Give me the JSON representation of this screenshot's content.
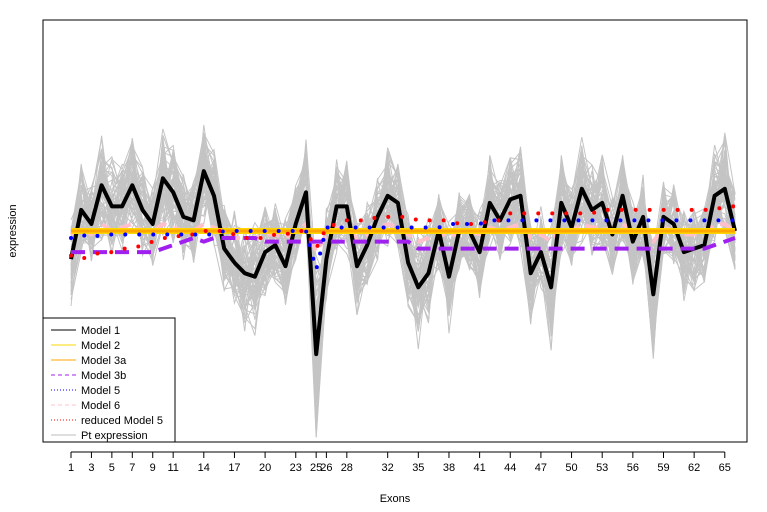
{
  "chart_data": {
    "type": "line",
    "xlabel": "Exons",
    "ylabel": "expression",
    "xlim": [
      1,
      66
    ],
    "ylim": [
      -0.6,
      0.6
    ],
    "x_ticks": [
      1,
      3,
      5,
      7,
      9,
      11,
      14,
      17,
      20,
      23,
      25,
      26,
      28,
      32,
      35,
      38,
      41,
      44,
      47,
      50,
      53,
      56,
      59,
      62,
      65
    ],
    "x_tick_labels": [
      "1",
      "3",
      "5",
      "7",
      "9",
      "11",
      "14",
      "17",
      "20",
      "23",
      "25",
      "26",
      "28",
      "32",
      "35",
      "38",
      "41",
      "44",
      "47",
      "50",
      "53",
      "56",
      "59",
      "62",
      "65"
    ],
    "grid": false,
    "legend_position": "bottom-left",
    "legend": [
      {
        "label": "Model 1",
        "color": "#000000",
        "style": "solid"
      },
      {
        "label": "Model 2",
        "color": "#FFD700",
        "style": "solid"
      },
      {
        "label": "Model 3a",
        "color": "#FFA500",
        "style": "solid"
      },
      {
        "label": "Model 3b",
        "color": "#A020F0",
        "style": "dashed"
      },
      {
        "label": "Model 5",
        "color": "#0000FF",
        "style": "dotted"
      },
      {
        "label": "Model 6",
        "color": "#FFC0CB",
        "style": "dashed"
      },
      {
        "label": "reduced Model 5",
        "color": "#FF0000",
        "style": "dotted"
      },
      {
        "label": "Pt expression",
        "color": "#BEBEBE",
        "style": "solid"
      }
    ],
    "series": [
      {
        "name": "Model 1",
        "color": "#000000",
        "style": "solid",
        "x": [
          1,
          2,
          3,
          4,
          5,
          6,
          7,
          8,
          9,
          10,
          11,
          12,
          13,
          14,
          15,
          16,
          17,
          18,
          19,
          20,
          21,
          22,
          23,
          24,
          25,
          26,
          27,
          28,
          29,
          30,
          31,
          32,
          33,
          34,
          35,
          36,
          37,
          38,
          39,
          40,
          41,
          42,
          43,
          44,
          45,
          46,
          47,
          48,
          49,
          50,
          51,
          52,
          53,
          54,
          55,
          56,
          57,
          58,
          59,
          60,
          61,
          62,
          63,
          64,
          65,
          66
        ],
        "values": [
          -0.08,
          0.06,
          0.02,
          0.13,
          0.07,
          0.07,
          0.13,
          0.06,
          0.02,
          0.15,
          0.11,
          0.04,
          0.03,
          0.17,
          0.1,
          -0.05,
          -0.09,
          -0.12,
          -0.13,
          -0.06,
          -0.04,
          -0.1,
          0.02,
          0.11,
          -0.35,
          -0.08,
          0.07,
          0.07,
          -0.1,
          -0.04,
          0.04,
          0.1,
          0.08,
          -0.09,
          -0.16,
          -0.12,
          0.0,
          -0.13,
          0.0,
          0.0,
          -0.06,
          0.08,
          0.03,
          0.09,
          0.1,
          -0.12,
          -0.06,
          -0.16,
          0.08,
          0.01,
          0.12,
          0.06,
          0.08,
          -0.01,
          0.1,
          -0.03,
          0.04,
          -0.18,
          0.04,
          0.02,
          -0.06,
          -0.05,
          -0.04,
          0.1,
          0.12,
          0.0
        ]
      },
      {
        "name": "Model 2",
        "color": "#FFD700",
        "style": "solid",
        "x": [
          1,
          66
        ],
        "values": [
          0.0,
          0.0
        ]
      },
      {
        "name": "Model 3a",
        "color": "#FFA500",
        "style": "solid",
        "x": [
          1,
          66
        ],
        "values": [
          0.0,
          0.0
        ]
      },
      {
        "name": "Model 3b",
        "color": "#A020F0",
        "style": "dashed",
        "x": [
          1,
          2,
          3,
          4,
          5,
          6,
          7,
          8,
          9,
          10,
          11,
          12,
          13,
          14,
          15,
          16,
          17,
          18,
          19,
          20,
          21,
          22,
          23,
          24,
          25,
          26,
          27,
          28,
          29,
          30,
          31,
          32,
          33,
          34,
          35,
          36,
          37,
          38,
          39,
          40,
          41,
          42,
          43,
          44,
          45,
          46,
          47,
          48,
          49,
          50,
          51,
          52,
          53,
          54,
          55,
          56,
          57,
          58,
          59,
          60,
          61,
          62,
          63,
          64,
          65,
          66
        ],
        "values": [
          -0.06,
          -0.06,
          -0.06,
          -0.06,
          -0.06,
          -0.06,
          -0.06,
          -0.06,
          -0.06,
          -0.05,
          -0.04,
          -0.03,
          -0.02,
          -0.03,
          -0.02,
          -0.02,
          -0.02,
          -0.02,
          -0.02,
          -0.03,
          -0.03,
          -0.03,
          -0.03,
          -0.03,
          -0.03,
          -0.03,
          -0.03,
          -0.03,
          -0.03,
          -0.03,
          -0.03,
          -0.03,
          -0.03,
          -0.03,
          -0.05,
          -0.05,
          -0.05,
          -0.05,
          -0.05,
          -0.05,
          -0.05,
          -0.05,
          -0.05,
          -0.05,
          -0.05,
          -0.05,
          -0.05,
          -0.05,
          -0.05,
          -0.05,
          -0.05,
          -0.05,
          -0.05,
          -0.05,
          -0.05,
          -0.05,
          -0.05,
          -0.05,
          -0.05,
          -0.05,
          -0.05,
          -0.05,
          -0.05,
          -0.04,
          -0.03,
          -0.02
        ]
      },
      {
        "name": "Model 5",
        "color": "#0000FF",
        "style": "dotted",
        "x": [
          1,
          2,
          3,
          4,
          5,
          6,
          7,
          8,
          9,
          10,
          11,
          12,
          13,
          14,
          15,
          16,
          17,
          18,
          19,
          20,
          21,
          22,
          23,
          24,
          25,
          26,
          27,
          28,
          29,
          30,
          31,
          32,
          33,
          34,
          35,
          36,
          37,
          38,
          39,
          40,
          41,
          42,
          43,
          44,
          45,
          46,
          47,
          48,
          49,
          50,
          51,
          52,
          53,
          54,
          55,
          56,
          57,
          58,
          59,
          60,
          61,
          62,
          63,
          64,
          65,
          66
        ],
        "values": [
          -0.02,
          -0.01,
          -0.02,
          -0.01,
          -0.01,
          -0.01,
          -0.01,
          -0.01,
          -0.01,
          -0.01,
          -0.01,
          -0.01,
          -0.01,
          -0.01,
          -0.01,
          0.0,
          0.0,
          0.0,
          0.0,
          0.0,
          0.0,
          0.0,
          0.0,
          0.0,
          -0.11,
          0.01,
          0.01,
          0.01,
          0.01,
          0.01,
          0.01,
          0.01,
          0.01,
          0.01,
          0.01,
          0.01,
          0.01,
          0.02,
          0.02,
          0.02,
          0.02,
          0.03,
          0.03,
          0.03,
          0.03,
          0.03,
          0.03,
          0.03,
          0.03,
          0.03,
          0.03,
          0.03,
          0.03,
          0.03,
          0.03,
          0.03,
          0.03,
          0.03,
          0.03,
          0.03,
          0.03,
          0.03,
          0.03,
          0.03,
          0.03,
          0.03
        ]
      },
      {
        "name": "Model 6",
        "color": "#FFC0CB",
        "style": "dashed",
        "x": [
          1,
          2,
          3,
          4,
          5,
          6,
          7,
          8,
          9,
          10,
          11,
          12,
          13,
          14,
          15,
          16,
          17,
          18,
          19,
          20,
          21,
          22,
          23,
          24,
          25,
          26,
          27,
          28,
          29,
          30,
          31,
          32,
          33,
          34,
          35,
          36,
          37,
          38,
          39,
          40,
          41,
          42,
          43,
          44,
          45,
          46,
          47,
          48,
          49,
          50,
          51,
          52,
          53,
          54,
          55,
          56,
          57,
          58,
          59,
          60,
          61,
          62,
          63,
          64,
          65,
          66
        ],
        "values": [
          -0.01,
          0.01,
          -0.01,
          0.02,
          0.0,
          0.01,
          0.02,
          0.0,
          0.0,
          0.02,
          0.01,
          0.0,
          0.0,
          0.02,
          0.01,
          -0.01,
          -0.02,
          -0.02,
          -0.02,
          -0.01,
          -0.01,
          -0.02,
          0.0,
          0.02,
          -0.06,
          -0.01,
          0.01,
          0.01,
          -0.02,
          -0.01,
          0.01,
          0.02,
          0.01,
          -0.01,
          -0.03,
          -0.02,
          0.0,
          -0.02,
          0.0,
          0.0,
          -0.01,
          0.01,
          0.0,
          0.01,
          0.02,
          -0.02,
          -0.01,
          -0.03,
          0.01,
          0.0,
          0.02,
          0.01,
          0.01,
          0.0,
          0.02,
          0.0,
          0.01,
          -0.03,
          0.01,
          0.0,
          -0.01,
          -0.01,
          -0.01,
          0.02,
          0.02,
          0.0
        ]
      },
      {
        "name": "reduced Model 5",
        "color": "#FF0000",
        "style": "dotted",
        "x": [
          1,
          2,
          3,
          4,
          5,
          6,
          7,
          8,
          9,
          10,
          11,
          12,
          13,
          14,
          15,
          16,
          17,
          18,
          19,
          20,
          21,
          22,
          23,
          24,
          25,
          26,
          27,
          28,
          29,
          30,
          31,
          32,
          33,
          34,
          35,
          36,
          37,
          38,
          39,
          40,
          41,
          42,
          43,
          44,
          45,
          46,
          47,
          48,
          49,
          50,
          51,
          52,
          53,
          54,
          55,
          56,
          57,
          58,
          59,
          60,
          61,
          62,
          63,
          64,
          65,
          66
        ],
        "values": [
          -0.07,
          -0.08,
          -0.07,
          -0.06,
          -0.06,
          -0.05,
          -0.05,
          -0.04,
          -0.03,
          -0.02,
          -0.02,
          -0.01,
          -0.01,
          0.0,
          0.0,
          0.0,
          -0.01,
          -0.02,
          -0.02,
          -0.02,
          -0.01,
          -0.01,
          0.0,
          0.0,
          -0.05,
          0.01,
          0.02,
          0.03,
          0.03,
          0.03,
          0.04,
          0.04,
          0.04,
          0.04,
          0.03,
          0.03,
          0.03,
          0.03,
          0.02,
          0.02,
          0.02,
          0.03,
          0.03,
          0.05,
          0.05,
          0.05,
          0.05,
          0.05,
          0.05,
          0.05,
          0.05,
          0.05,
          0.06,
          0.06,
          0.06,
          0.06,
          0.06,
          0.06,
          0.06,
          0.06,
          0.06,
          0.06,
          0.06,
          0.06,
          0.07,
          0.07
        ]
      }
    ]
  }
}
